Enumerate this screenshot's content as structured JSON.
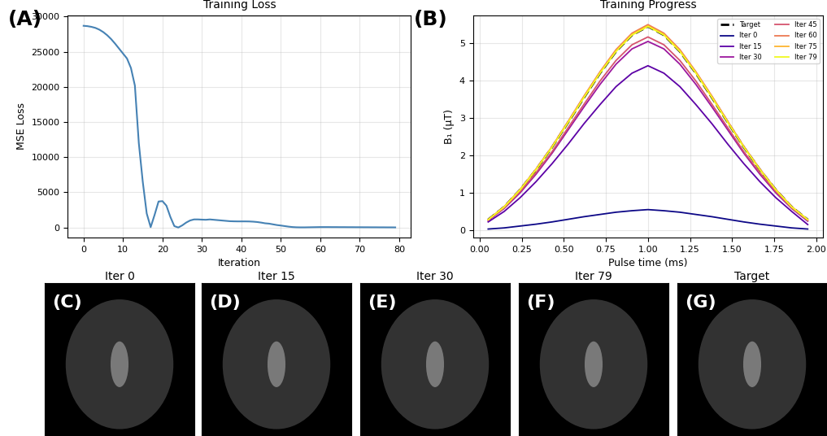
{
  "chart_data": [
    {
      "type": "line",
      "annotations": [
        "(A)"
      ],
      "title": "Training Loss",
      "x_label": "Iteration",
      "y_label": "MSE Loss",
      "x": [
        0,
        1,
        2,
        3,
        4,
        5,
        6,
        7,
        8,
        9,
        10,
        11,
        12,
        13,
        14,
        15,
        16,
        17,
        18,
        19,
        20,
        21,
        22,
        23,
        24,
        25,
        26,
        27,
        28,
        29,
        30,
        31,
        32,
        33,
        34,
        35,
        36,
        37,
        38,
        39,
        40,
        41,
        42,
        43,
        44,
        45,
        46,
        47,
        48,
        49,
        50,
        51,
        52,
        53,
        54,
        55,
        56,
        57,
        58,
        59,
        60,
        61,
        62,
        63,
        64,
        65,
        66,
        67,
        68,
        69,
        70,
        71,
        72,
        73,
        74,
        75,
        76,
        77,
        78,
        79
      ],
      "values": [
        28700,
        28650,
        28550,
        28400,
        28150,
        27800,
        27350,
        26800,
        26150,
        25450,
        24750,
        24050,
        22700,
        20200,
        12000,
        6500,
        2000,
        50,
        1800,
        3700,
        3750,
        3100,
        1500,
        200,
        0,
        300,
        700,
        1000,
        1150,
        1150,
        1120,
        1100,
        1150,
        1100,
        1050,
        1000,
        950,
        900,
        880,
        870,
        870,
        870,
        860,
        830,
        780,
        700,
        600,
        550,
        450,
        350,
        280,
        200,
        120,
        60,
        30,
        20,
        20,
        30,
        40,
        50,
        60,
        60,
        60,
        55,
        55,
        50,
        50,
        45,
        45,
        40,
        40,
        35,
        35,
        30,
        30,
        25,
        25,
        20,
        20,
        15
      ],
      "color": "#4682b4",
      "xlim": [
        -4,
        83
      ],
      "xticks": [
        0,
        10,
        20,
        30,
        40,
        50,
        60,
        70,
        80
      ],
      "ylim": [
        -1440,
        30200
      ],
      "yticks": [
        0,
        5000,
        10000,
        15000,
        20000,
        25000,
        30000
      ],
      "grid": true
    },
    {
      "type": "line",
      "annotations": [
        "(B)"
      ],
      "title": "Training Progress",
      "x_label": "Pulse time (ms)",
      "y_label": "B₁ (μT)",
      "x": [
        0.05,
        0.145,
        0.24,
        0.335,
        0.43,
        0.525,
        0.62,
        0.715,
        0.81,
        0.905,
        1.0,
        1.095,
        1.19,
        1.285,
        1.38,
        1.475,
        1.57,
        1.665,
        1.76,
        1.855,
        1.95
      ],
      "series": [
        {
          "name": "Target",
          "color": "#000000",
          "line_style": "dashed",
          "values": [
            0.28,
            0.62,
            1.08,
            1.62,
            2.22,
            2.88,
            3.55,
            4.2,
            4.78,
            5.22,
            5.45,
            5.22,
            4.78,
            4.2,
            3.55,
            2.88,
            2.22,
            1.62,
            1.08,
            0.62,
            0.28
          ]
        },
        {
          "name": "Iter 0",
          "color": "#0d0887",
          "line_style": "solid",
          "values": [
            0.03,
            0.06,
            0.11,
            0.16,
            0.22,
            0.29,
            0.36,
            0.42,
            0.48,
            0.52,
            0.55,
            0.52,
            0.48,
            0.42,
            0.36,
            0.29,
            0.22,
            0.16,
            0.11,
            0.06,
            0.03
          ]
        },
        {
          "name": "Iter 15",
          "color": "#5c01a6",
          "line_style": "solid",
          "values": [
            0.22,
            0.5,
            0.87,
            1.3,
            1.78,
            2.3,
            2.85,
            3.36,
            3.84,
            4.2,
            4.4,
            4.2,
            3.84,
            3.36,
            2.85,
            2.3,
            1.78,
            1.3,
            0.87,
            0.5,
            0.15
          ]
        },
        {
          "name": "Iter 30",
          "color": "#9c179e",
          "line_style": "solid",
          "values": [
            0.26,
            0.58,
            1.0,
            1.5,
            2.06,
            2.68,
            3.3,
            3.9,
            4.44,
            4.85,
            5.05,
            4.85,
            4.44,
            3.9,
            3.3,
            2.68,
            2.06,
            1.5,
            1.0,
            0.58,
            0.24
          ]
        },
        {
          "name": "Iter 45",
          "color": "#d5546e",
          "line_style": "solid",
          "values": [
            0.27,
            0.59,
            1.03,
            1.54,
            2.1,
            2.74,
            3.37,
            3.99,
            4.54,
            4.96,
            5.17,
            4.96,
            4.54,
            3.99,
            3.37,
            2.74,
            2.1,
            1.54,
            1.03,
            0.59,
            0.26
          ]
        },
        {
          "name": "Iter 60",
          "color": "#ed7953",
          "line_style": "solid",
          "values": [
            0.28,
            0.63,
            1.09,
            1.64,
            2.24,
            2.91,
            3.59,
            4.24,
            4.83,
            5.27,
            5.5,
            5.27,
            4.83,
            4.24,
            3.59,
            2.91,
            2.24,
            1.64,
            1.09,
            0.63,
            0.28
          ]
        },
        {
          "name": "Iter 75",
          "color": "#fdb42f",
          "line_style": "solid",
          "values": [
            0.28,
            0.62,
            1.08,
            1.63,
            2.23,
            2.89,
            3.57,
            4.22,
            4.8,
            5.24,
            5.47,
            5.24,
            4.8,
            4.22,
            3.57,
            2.89,
            2.23,
            1.63,
            1.08,
            0.62,
            0.28
          ]
        },
        {
          "name": "Iter 79",
          "color": "#f0f921",
          "line_style": "solid",
          "values": [
            0.28,
            0.62,
            1.08,
            1.62,
            2.22,
            2.88,
            3.55,
            4.2,
            4.78,
            5.22,
            5.45,
            5.22,
            4.78,
            4.2,
            3.55,
            2.88,
            2.22,
            1.62,
            1.08,
            0.62,
            0.28
          ]
        }
      ],
      "xlim": [
        -0.04,
        2.04
      ],
      "xticks": [
        {
          "value": 0,
          "label": "0.00"
        },
        {
          "value": 0.25,
          "label": "0.25"
        },
        {
          "value": 0.5,
          "label": "0.50"
        },
        {
          "value": 0.75,
          "label": "0.75"
        },
        {
          "value": 1.0,
          "label": "1.00"
        },
        {
          "value": 1.25,
          "label": "1.25"
        },
        {
          "value": 1.5,
          "label": "1.50"
        },
        {
          "value": 1.75,
          "label": "1.75"
        },
        {
          "value": 2.0,
          "label": "2.00"
        }
      ],
      "ylim": [
        -0.2,
        5.75
      ],
      "yticks": [
        0,
        1,
        2,
        3,
        4,
        5
      ],
      "grid": true,
      "legend": "upper right"
    }
  ],
  "images": [
    {
      "label": "(C)",
      "title": "Iter 0"
    },
    {
      "label": "(D)",
      "title": "Iter 15"
    },
    {
      "label": "(E)",
      "title": "Iter 30"
    },
    {
      "label": "(F)",
      "title": "Iter 79"
    },
    {
      "label": "(G)",
      "title": "Target"
    }
  ]
}
